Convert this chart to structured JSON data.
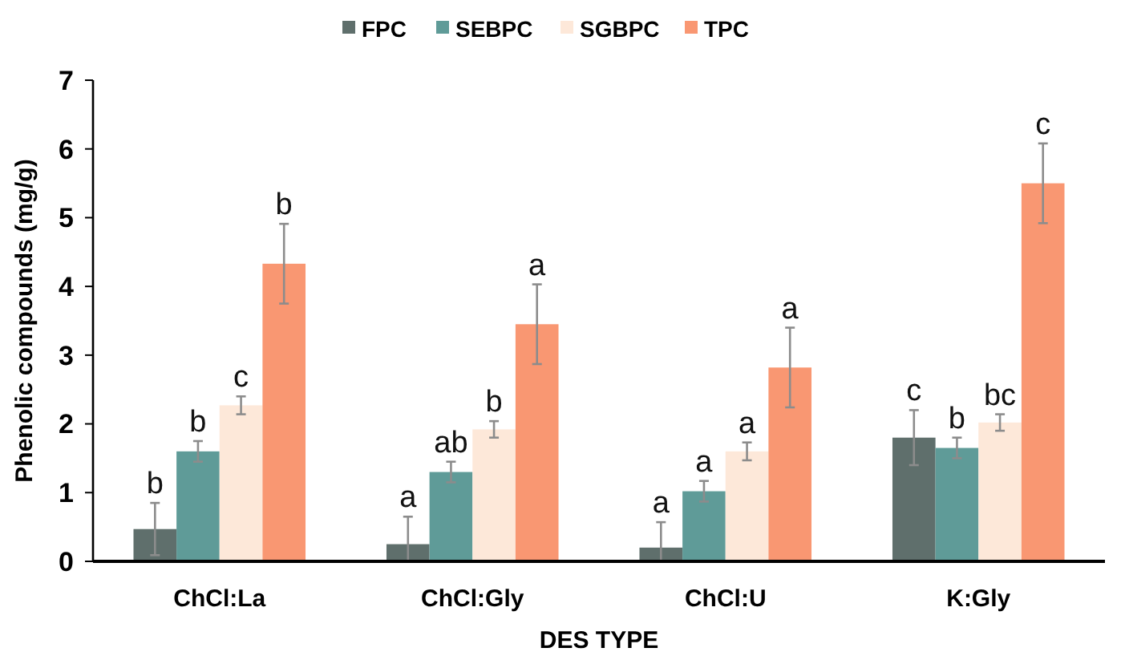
{
  "chart_data": {
    "type": "bar",
    "xlabel": "DES TYPE",
    "ylabel": "Phenolic compounds (mg/g)",
    "categories": [
      "ChCl:La",
      "ChCl:Gly",
      "ChCl:U",
      "K:Gly"
    ],
    "series": [
      {
        "name": "FPC",
        "color": "#5f6f6c",
        "values": [
          0.47,
          0.25,
          0.2,
          1.8
        ],
        "errors": [
          0.38,
          [
            0,
            0.65
          ],
          [
            0,
            0.57
          ],
          0.4
        ],
        "value_labels": [
          "b",
          "a",
          "a",
          "c"
        ]
      },
      {
        "name": "SEBPC",
        "color": "#5f9b98",
        "values": [
          1.6,
          1.3,
          1.02,
          1.65
        ],
        "errors": [
          0.15,
          0.15,
          0.15,
          0.15
        ],
        "value_labels": [
          "b",
          "ab",
          "a",
          "b"
        ]
      },
      {
        "name": "SGBPC",
        "color": "#fde8d9",
        "values": [
          2.27,
          1.92,
          1.6,
          2.02
        ],
        "errors": [
          0.13,
          0.12,
          0.13,
          0.12
        ],
        "value_labels": [
          "c",
          "b",
          "a",
          "bc"
        ]
      },
      {
        "name": "TPC",
        "color": "#f99772",
        "values": [
          4.33,
          3.45,
          2.82,
          5.5
        ],
        "errors": [
          0.58,
          0.58,
          0.58,
          0.58
        ],
        "value_labels": [
          "b",
          "a",
          "a",
          "c"
        ]
      }
    ],
    "ylim": [
      0,
      7
    ],
    "yticks": [
      0,
      1,
      2,
      3,
      4,
      5,
      6,
      7
    ],
    "grid": false,
    "legend": "top"
  }
}
